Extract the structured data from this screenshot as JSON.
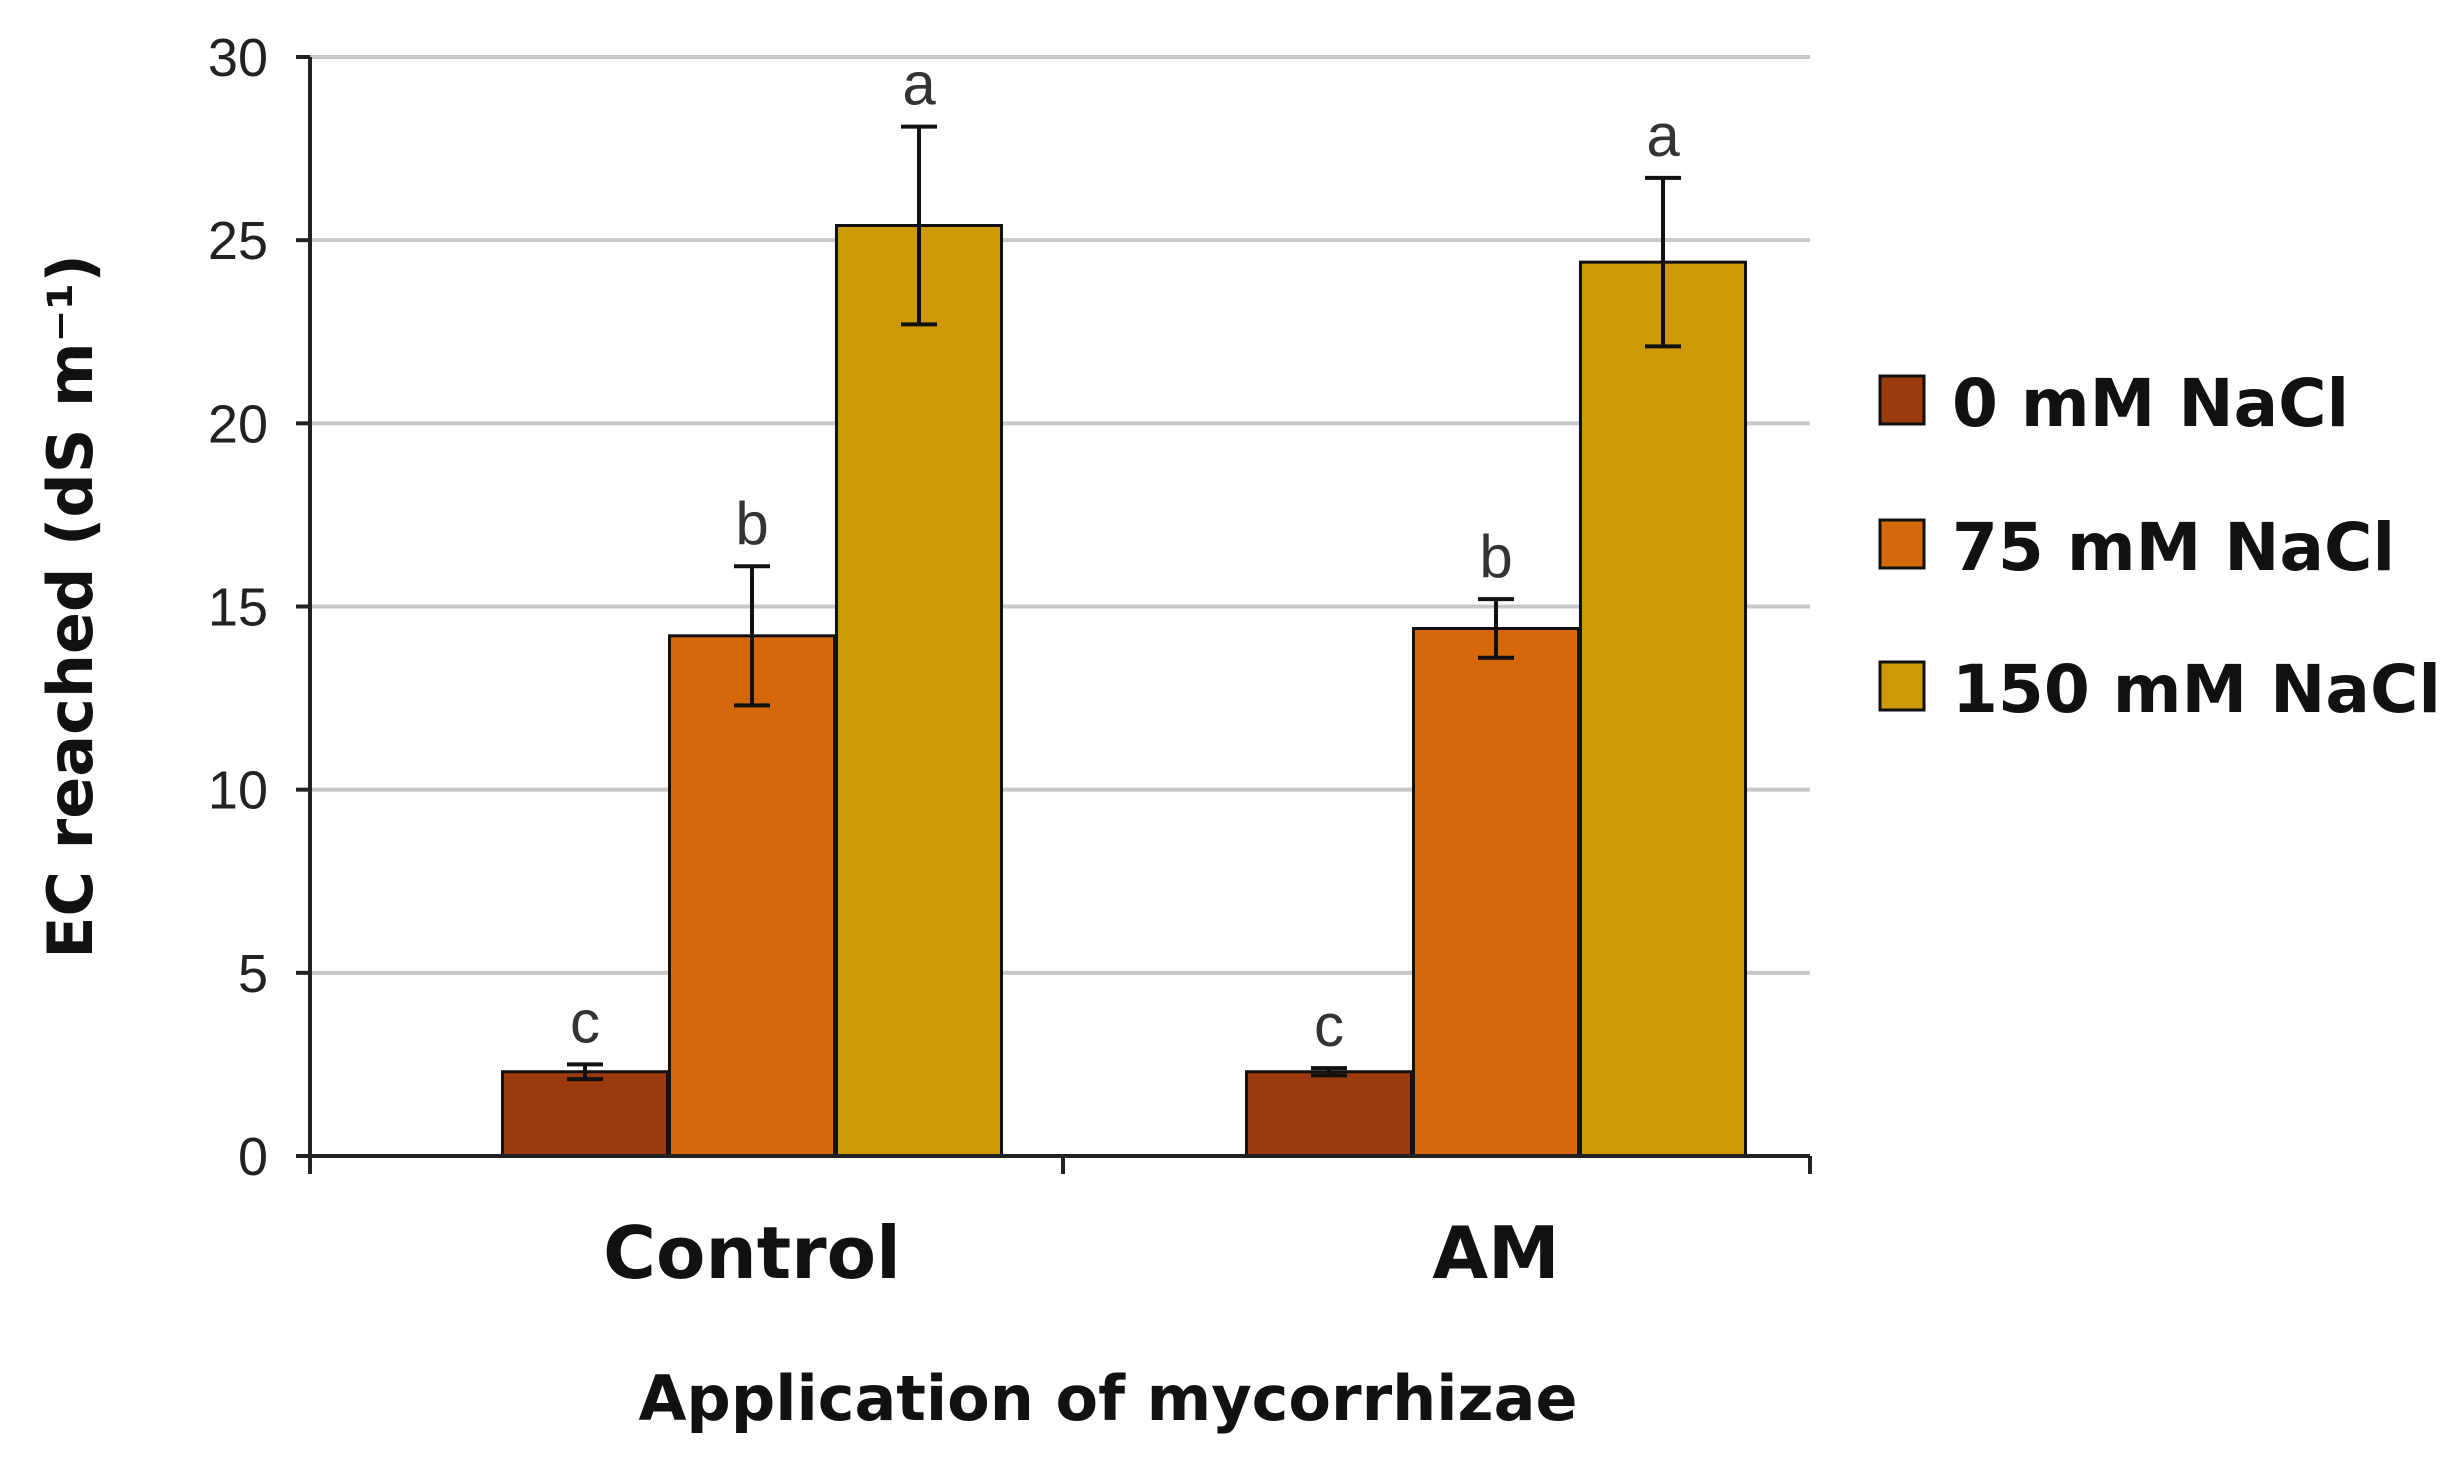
{
  "chart_data": {
    "type": "bar",
    "title": "",
    "xlabel": "Application of mycorrhizae",
    "ylabel": "EC reached (dS m⁻¹)",
    "ylim": [
      0,
      30
    ],
    "yticks": [
      0,
      5,
      10,
      15,
      20,
      25,
      30
    ],
    "grid": true,
    "legend_position": "right",
    "categories": [
      "Control",
      "AM"
    ],
    "series": [
      {
        "name": "0 mM NaCl",
        "color": "#9B3A0E",
        "values": [
          2.3,
          2.3
        ],
        "errors": [
          0.2,
          0.1
        ],
        "significance": [
          "c",
          "c"
        ]
      },
      {
        "name": "75 mM NaCl",
        "color": "#D4680A",
        "values": [
          14.2,
          14.4
        ],
        "errors": [
          1.9,
          0.8
        ],
        "significance": [
          "b",
          "b"
        ]
      },
      {
        "name": "150 mM NaCl",
        "color": "#CC9A06",
        "values": [
          25.4,
          24.4
        ],
        "errors": [
          2.7,
          2.3
        ],
        "significance": [
          "a",
          "a"
        ]
      }
    ]
  }
}
